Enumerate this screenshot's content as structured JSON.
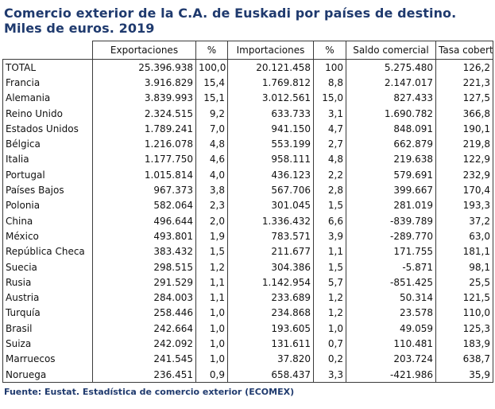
{
  "title": {
    "line1": "Comercio exterior de la C.A. de Euskadi por países de destino.",
    "line2": "Miles de euros. 2019"
  },
  "table": {
    "headers": [
      "",
      "Exportaciones",
      "%",
      "Importaciones",
      "%",
      "Saldo comercial",
      "Tasa cobertura %"
    ],
    "rows": [
      [
        "TOTAL",
        "25.396.938",
        "100,0",
        "20.121.458",
        "100",
        "5.275.480",
        "126,2"
      ],
      [
        "Francia",
        "3.916.829",
        "15,4",
        "1.769.812",
        "8,8",
        "2.147.017",
        "221,3"
      ],
      [
        "Alemania",
        "3.839.993",
        "15,1",
        "3.012.561",
        "15,0",
        "827.433",
        "127,5"
      ],
      [
        "Reino Unido",
        "2.324.515",
        "9,2",
        "633.733",
        "3,1",
        "1.690.782",
        "366,8"
      ],
      [
        "Estados Unidos",
        "1.789.241",
        "7,0",
        "941.150",
        "4,7",
        "848.091",
        "190,1"
      ],
      [
        "Bélgica",
        "1.216.078",
        "4,8",
        "553.199",
        "2,7",
        "662.879",
        "219,8"
      ],
      [
        "Italia",
        "1.177.750",
        "4,6",
        "958.111",
        "4,8",
        "219.638",
        "122,9"
      ],
      [
        "Portugal",
        "1.015.814",
        "4,0",
        "436.123",
        "2,2",
        "579.691",
        "232,9"
      ],
      [
        "Países Bajos",
        "967.373",
        "3,8",
        "567.706",
        "2,8",
        "399.667",
        "170,4"
      ],
      [
        "Polonia",
        "582.064",
        "2,3",
        "301.045",
        "1,5",
        "281.019",
        "193,3"
      ],
      [
        "China",
        "496.644",
        "2,0",
        "1.336.432",
        "6,6",
        "-839.789",
        "37,2"
      ],
      [
        "México",
        "493.801",
        "1,9",
        "783.571",
        "3,9",
        "-289.770",
        "63,0"
      ],
      [
        "República Checa",
        "383.432",
        "1,5",
        "211.677",
        "1,1",
        "171.755",
        "181,1"
      ],
      [
        "Suecia",
        "298.515",
        "1,2",
        "304.386",
        "1,5",
        "-5.871",
        "98,1"
      ],
      [
        "Rusia",
        "291.529",
        "1,1",
        "1.142.954",
        "5,7",
        "-851.425",
        "25,5"
      ],
      [
        "Austria",
        "284.003",
        "1,1",
        "233.689",
        "1,2",
        "50.314",
        "121,5"
      ],
      [
        "Turquía",
        "258.446",
        "1,0",
        "234.868",
        "1,2",
        "23.578",
        "110,0"
      ],
      [
        "Brasil",
        "242.664",
        "1,0",
        "193.605",
        "1,0",
        "49.059",
        "125,3"
      ],
      [
        "Suiza",
        "242.092",
        "1,0",
        "131.611",
        "0,7",
        "110.481",
        "183,9"
      ],
      [
        "Marruecos",
        "241.545",
        "1,0",
        "37.820",
        "0,2",
        "203.724",
        "638,7"
      ],
      [
        "Noruega",
        "236.451",
        "0,9",
        "658.437",
        "3,3",
        "-421.986",
        "35,9"
      ]
    ]
  },
  "footer": "Fuente: Eustat. Estadística de comercio exterior (ECOMEX)",
  "colors": {
    "title": "#1f3a6e",
    "border": "#3b3b3b"
  }
}
